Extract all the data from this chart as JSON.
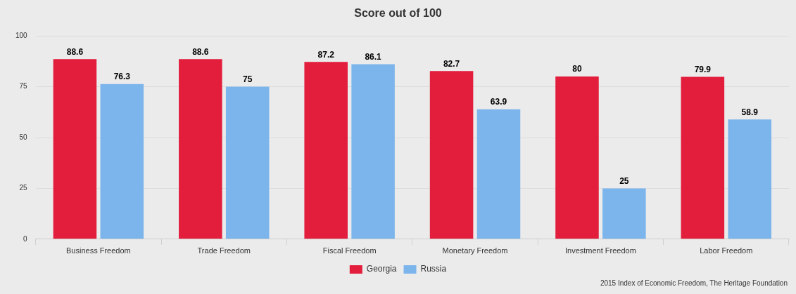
{
  "chart_data": {
    "type": "bar",
    "title": "Score out of 100",
    "categories": [
      "Business Freedom",
      "Trade Freedom",
      "Fiscal Freedom",
      "Monetary Freedom",
      "Investment Freedom",
      "Labor Freedom"
    ],
    "series": [
      {
        "name": "Georgia",
        "color": "#e31d3c",
        "values": [
          88.6,
          88.6,
          87.2,
          82.7,
          80,
          79.9
        ]
      },
      {
        "name": "Russia",
        "color": "#7cb5ec",
        "values": [
          76.3,
          75,
          86.1,
          63.9,
          25,
          58.9
        ]
      }
    ],
    "ylim": [
      0,
      100
    ],
    "yticks": [
      0,
      25,
      50,
      75,
      100
    ],
    "grid": "y",
    "legend": "bottom",
    "data_labels": true,
    "annotations": [
      "2015 Index of Economic Freedom, The Heritage Foundation"
    ]
  }
}
